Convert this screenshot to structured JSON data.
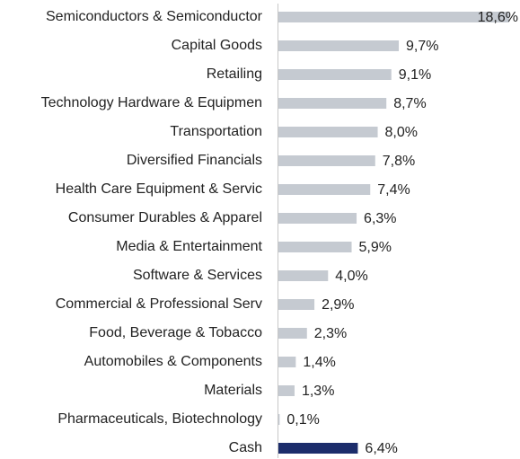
{
  "chart_data": {
    "type": "barh",
    "categories": [
      "Semiconductors & Semiconductor",
      "Capital Goods",
      "Retailing",
      "Technology Hardware & Equipmen",
      "Transportation",
      "Diversified Financials",
      "Health Care Equipment & Servic",
      "Consumer Durables & Apparel",
      "Media & Entertainment",
      "Software & Services",
      "Commercial & Professional Serv",
      "Food, Beverage & Tobacco",
      "Automobiles & Components",
      "Materials",
      "Pharmaceuticals, Biotechnology",
      "Cash"
    ],
    "values": [
      18.6,
      9.7,
      9.1,
      8.7,
      8.0,
      7.8,
      7.4,
      6.3,
      5.9,
      4.0,
      2.9,
      2.3,
      1.4,
      1.3,
      0.1,
      6.4
    ],
    "value_labels": [
      "18,6%",
      "9,7%",
      "9,1%",
      "8,7%",
      "8,0%",
      "7,8%",
      "7,4%",
      "6,3%",
      "5,9%",
      "4,0%",
      "2,9%",
      "2,3%",
      "1,4%",
      "1,3%",
      "0,1%",
      "6,4%"
    ],
    "colors": [
      "#c5cad1",
      "#c5cad1",
      "#c5cad1",
      "#c5cad1",
      "#c5cad1",
      "#c5cad1",
      "#c5cad1",
      "#c5cad1",
      "#c5cad1",
      "#c5cad1",
      "#c5cad1",
      "#c5cad1",
      "#c5cad1",
      "#c5cad1",
      "#c5cad1",
      "#1c2d6b"
    ]
  }
}
